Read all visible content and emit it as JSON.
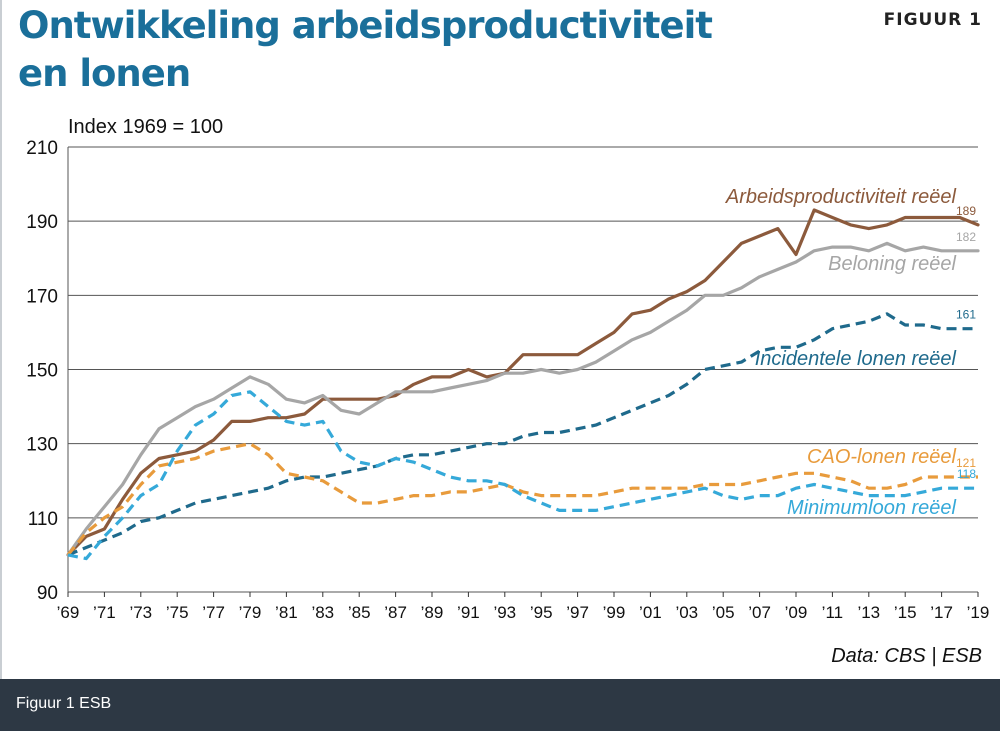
{
  "header": {
    "title_line1": "Ontwikkeling arbeidsproductiviteit",
    "title_line2": "en lonen",
    "figure_label": "FIGUUR 1"
  },
  "footer": {
    "caption": "Figuur 1 ESB"
  },
  "colors": {
    "productivity": "#8c5a3c",
    "wages": "#a6a6a6",
    "incidental": "#1f6a8c",
    "cao": "#e89b3c",
    "minimum": "#35a9d9",
    "grid": "#555555"
  },
  "chart_data": {
    "type": "line",
    "title": "Ontwikkeling arbeidsproductiviteit en lonen",
    "ylabel": "Index 1969 = 100",
    "ylim": [
      90,
      210
    ],
    "yticks": [
      90,
      110,
      130,
      150,
      170,
      190,
      210
    ],
    "xlim": [
      1969,
      2019
    ],
    "xticks": [
      {
        "year": 1969,
        "label": "’69"
      },
      {
        "year": 1971,
        "label": "’71"
      },
      {
        "year": 1973,
        "label": "’73"
      },
      {
        "year": 1975,
        "label": "’75"
      },
      {
        "year": 1977,
        "label": "’77"
      },
      {
        "year": 1979,
        "label": "’79"
      },
      {
        "year": 1981,
        "label": "’81"
      },
      {
        "year": 1983,
        "label": "’83"
      },
      {
        "year": 1985,
        "label": "’85"
      },
      {
        "year": 1987,
        "label": "’87"
      },
      {
        "year": 1989,
        "label": "’89"
      },
      {
        "year": 1991,
        "label": "’91"
      },
      {
        "year": 1993,
        "label": "’93"
      },
      {
        "year": 1995,
        "label": "’95"
      },
      {
        "year": 1997,
        "label": "’97"
      },
      {
        "year": 1999,
        "label": "’99"
      },
      {
        "year": 2001,
        "label": "’01"
      },
      {
        "year": 2003,
        "label": "’03"
      },
      {
        "year": 2005,
        "label": "’05"
      },
      {
        "year": 2007,
        "label": "’07"
      },
      {
        "year": 2009,
        "label": "’09"
      },
      {
        "year": 2011,
        "label": "’11"
      },
      {
        "year": 2013,
        "label": "’13"
      },
      {
        "year": 2015,
        "label": "’15"
      },
      {
        "year": 2017,
        "label": "’17"
      },
      {
        "year": 2019,
        "label": "’19"
      }
    ],
    "grid": true,
    "source": "Data: CBS | ESB",
    "x": [
      1969,
      1970,
      1971,
      1972,
      1973,
      1974,
      1975,
      1976,
      1977,
      1978,
      1979,
      1980,
      1981,
      1982,
      1983,
      1984,
      1985,
      1986,
      1987,
      1988,
      1989,
      1990,
      1991,
      1992,
      1993,
      1994,
      1995,
      1996,
      1997,
      1998,
      1999,
      2000,
      2001,
      2002,
      2003,
      2004,
      2005,
      2006,
      2007,
      2008,
      2009,
      2010,
      2011,
      2012,
      2013,
      2014,
      2015,
      2016,
      2017,
      2018,
      2019
    ],
    "series": [
      {
        "key": "productivity",
        "name": "Arbeidsproductiviteit reëel",
        "dashed": false,
        "end_label": "189",
        "values": [
          100,
          105,
          107,
          115,
          122,
          126,
          127,
          128,
          131,
          136,
          136,
          137,
          137,
          138,
          142,
          142,
          142,
          142,
          143,
          146,
          148,
          148,
          150,
          148,
          149,
          154,
          154,
          154,
          154,
          157,
          160,
          165,
          166,
          169,
          171,
          174,
          179,
          184,
          186,
          188,
          181,
          193,
          191,
          189,
          188,
          189,
          191,
          191,
          191,
          191,
          189
        ]
      },
      {
        "key": "wages",
        "name": "Beloning reëel",
        "dashed": false,
        "end_label": "182",
        "values": [
          100,
          107,
          113,
          119,
          127,
          134,
          137,
          140,
          142,
          145,
          148,
          146,
          142,
          141,
          143,
          139,
          138,
          141,
          144,
          144,
          144,
          145,
          146,
          147,
          149,
          149,
          150,
          149,
          150,
          152,
          155,
          158,
          160,
          163,
          166,
          170,
          170,
          172,
          175,
          177,
          179,
          182,
          183,
          183,
          182,
          184,
          182,
          183,
          182,
          182,
          182
        ]
      },
      {
        "key": "incidental",
        "name": "Incidentele lonen reëel",
        "dashed": true,
        "end_label": "161",
        "values": [
          100,
          102,
          104,
          106,
          109,
          110,
          112,
          114,
          115,
          116,
          117,
          118,
          120,
          121,
          121,
          122,
          123,
          124,
          126,
          127,
          127,
          128,
          129,
          130,
          130,
          132,
          133,
          133,
          134,
          135,
          137,
          139,
          141,
          143,
          146,
          150,
          151,
          152,
          155,
          156,
          156,
          158,
          161,
          162,
          163,
          165,
          162,
          162,
          161,
          161,
          161
        ]
      },
      {
        "key": "cao",
        "name": "CAO-lonen reëel",
        "dashed": true,
        "end_label": "121",
        "values": [
          100,
          106,
          110,
          113,
          119,
          124,
          125,
          126,
          128,
          129,
          130,
          127,
          122,
          121,
          120,
          117,
          114,
          114,
          115,
          116,
          116,
          117,
          117,
          118,
          119,
          117,
          116,
          116,
          116,
          116,
          117,
          118,
          118,
          118,
          118,
          119,
          119,
          119,
          120,
          121,
          122,
          122,
          121,
          120,
          118,
          118,
          119,
          121,
          121,
          121,
          121
        ]
      },
      {
        "key": "minimum",
        "name": "Minimumloon reëel",
        "dashed": true,
        "end_label": "118",
        "values": [
          100,
          99,
          105,
          110,
          116,
          119,
          128,
          135,
          138,
          143,
          144,
          140,
          136,
          135,
          136,
          128,
          125,
          124,
          126,
          125,
          123,
          121,
          120,
          120,
          119,
          116,
          114,
          112,
          112,
          112,
          113,
          114,
          115,
          116,
          117,
          118,
          116,
          115,
          116,
          116,
          118,
          119,
          118,
          117,
          116,
          116,
          116,
          117,
          118,
          118,
          118
        ]
      }
    ]
  }
}
